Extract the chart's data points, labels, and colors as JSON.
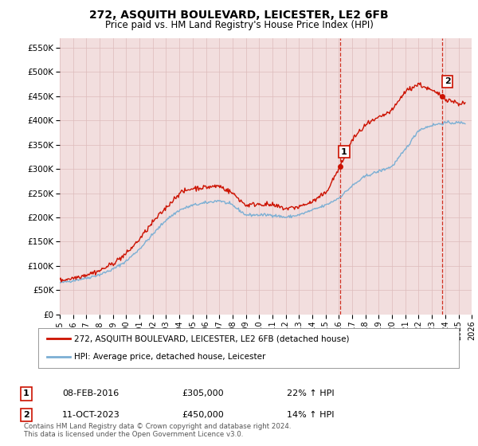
{
  "title": "272, ASQUITH BOULEVARD, LEICESTER, LE2 6FB",
  "subtitle": "Price paid vs. HM Land Registry's House Price Index (HPI)",
  "ylim": [
    0,
    570000
  ],
  "yticks": [
    0,
    50000,
    100000,
    150000,
    200000,
    250000,
    300000,
    350000,
    400000,
    450000,
    500000,
    550000
  ],
  "ytick_labels": [
    "£0",
    "£50K",
    "£100K",
    "£150K",
    "£200K",
    "£250K",
    "£300K",
    "£350K",
    "£400K",
    "£450K",
    "£500K",
    "£550K"
  ],
  "hpi_color": "#7bafd4",
  "price_color": "#cc1100",
  "marker_color": "#cc1100",
  "plot_bg_color": "#f2dede",
  "grid_color": "#ddbbbb",
  "sale1_date": "08-FEB-2016",
  "sale1_price": 305000,
  "sale1_hpi": "22%",
  "sale1_x": 2016.1,
  "sale2_date": "11-OCT-2023",
  "sale2_price": 450000,
  "sale2_hpi": "14%",
  "sale2_x": 2023.78,
  "legend_label_red": "272, ASQUITH BOULEVARD, LEICESTER, LE2 6FB (detached house)",
  "legend_label_blue": "HPI: Average price, detached house, Leicester",
  "footnote": "Contains HM Land Registry data © Crown copyright and database right 2024.\nThis data is licensed under the Open Government Licence v3.0.",
  "xmin": 1995,
  "xmax": 2026,
  "hpi_points_x": [
    1995,
    1996,
    1997,
    1998,
    1999,
    2000,
    2001,
    2002,
    2003,
    2004,
    2005,
    2006,
    2007,
    2008,
    2009,
    2010,
    2011,
    2012,
    2013,
    2014,
    2015,
    2016,
    2017,
    2018,
    2019,
    2020,
    2021,
    2022,
    2023,
    2024,
    2025
  ],
  "hpi_points_y": [
    65000,
    70000,
    75000,
    82000,
    93000,
    110000,
    135000,
    165000,
    195000,
    215000,
    225000,
    230000,
    235000,
    225000,
    205000,
    205000,
    205000,
    200000,
    205000,
    215000,
    225000,
    240000,
    265000,
    285000,
    295000,
    305000,
    340000,
    380000,
    390000,
    395000,
    395000
  ],
  "price_points_x": [
    1995,
    1996,
    1997,
    1998,
    1999,
    2000,
    2001,
    2002,
    2003,
    2004,
    2005,
    2006,
    2007,
    2008,
    2009,
    2010,
    2011,
    2012,
    2013,
    2014,
    2015,
    2016.1,
    2017,
    2018,
    2019,
    2020,
    2021,
    2022,
    2023.78,
    2024,
    2025
  ],
  "price_points_y": [
    70000,
    75000,
    82000,
    90000,
    105000,
    125000,
    155000,
    190000,
    220000,
    250000,
    260000,
    262000,
    265000,
    250000,
    225000,
    228000,
    225000,
    218000,
    222000,
    232000,
    250000,
    305000,
    360000,
    390000,
    405000,
    420000,
    460000,
    475000,
    450000,
    445000,
    435000
  ]
}
